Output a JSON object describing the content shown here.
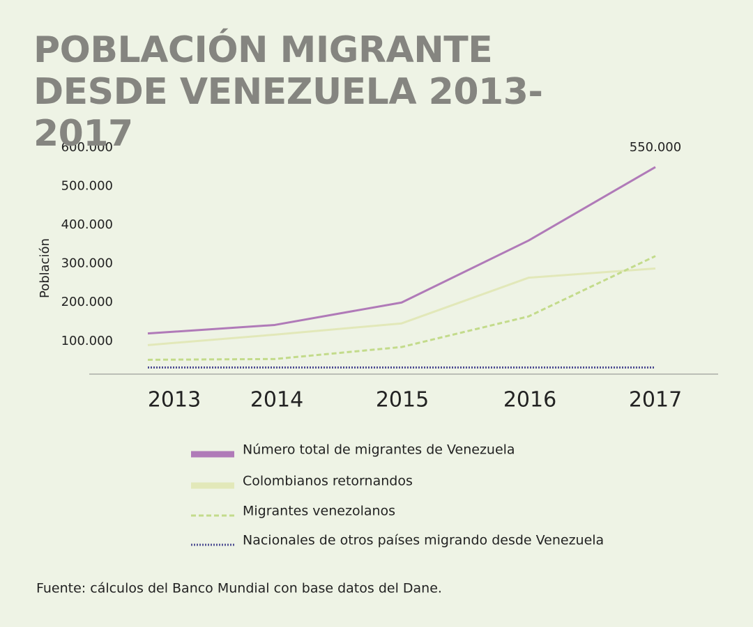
{
  "chart_data": {
    "type": "line",
    "title": "POBLACIÓN MIGRANTE DESDE VENEZUELA 2013-2017",
    "y_label": "Población",
    "source": "Fuente: cálculos del Banco Mundial con base datos del Dane.",
    "categories": [
      "2013",
      "2014",
      "2015",
      "2016",
      "2017"
    ],
    "ylim": [
      15000,
      600000
    ],
    "yticks": [
      {
        "value": 100000,
        "label": "100.000"
      },
      {
        "value": 200000,
        "label": "200.000"
      },
      {
        "value": 300000,
        "label": "300.000"
      },
      {
        "value": 400000,
        "label": "400.000"
      },
      {
        "value": 500000,
        "label": "500.000"
      },
      {
        "value": 600000,
        "label": "600.000"
      }
    ],
    "grid": false,
    "series": [
      {
        "name": "Número total de migrantes de Venezuela",
        "color": "#b07ab8",
        "style": "solid",
        "values": [
          120000,
          142000,
          200000,
          360000,
          550000
        ],
        "value_labels": [
          null,
          null,
          null,
          null,
          "550.000"
        ]
      },
      {
        "name": "Colombianos retornandos",
        "color": "#e2e8b9",
        "style": "solid",
        "values": [
          90000,
          117000,
          146000,
          264000,
          288000
        ]
      },
      {
        "name": "Migrantes venezolanos",
        "color": "#c3db8b",
        "style": "dashed",
        "values": [
          52000,
          54000,
          85000,
          164000,
          320000
        ]
      },
      {
        "name": "Nacionales de otros países migrando desde Venezuela",
        "color": "#4d4d92",
        "style": "dotted",
        "values": [
          32000,
          32000,
          32000,
          32000,
          32000
        ]
      }
    ]
  }
}
